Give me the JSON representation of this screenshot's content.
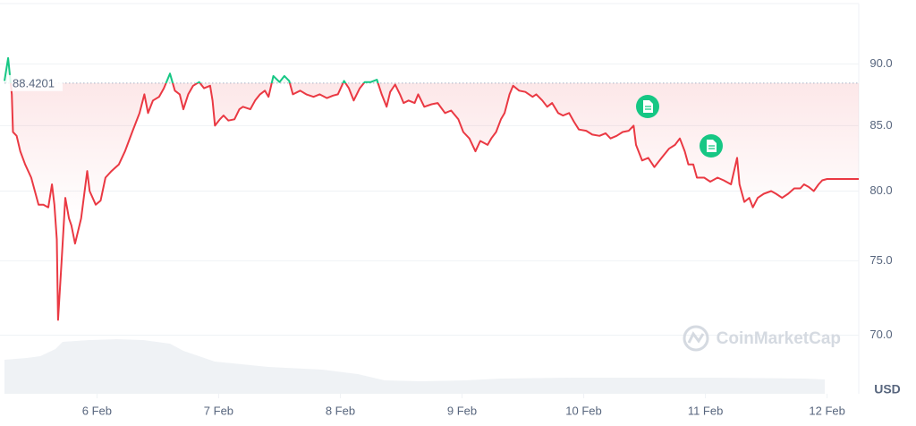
{
  "chart_data": {
    "type": "line",
    "log_scale": true,
    "grid": true,
    "baseline": 88.4201,
    "baseline_label": "88.4201",
    "y_label": "USD",
    "watermark": "CoinMarketCap",
    "xlim": [
      5.24,
      12.26
    ],
    "ylim": [
      66.3,
      95.1
    ],
    "xticks": [
      {
        "value": 6,
        "label": "6 Feb"
      },
      {
        "value": 7,
        "label": "7 Feb"
      },
      {
        "value": 8,
        "label": "8 Feb"
      },
      {
        "value": 9,
        "label": "9 Feb"
      },
      {
        "value": 10,
        "label": "10 Feb"
      },
      {
        "value": 11,
        "label": "11 Feb"
      },
      {
        "value": 12,
        "label": "12 Feb"
      }
    ],
    "yticks": [
      {
        "value": 70,
        "label": "70.0"
      },
      {
        "value": 75,
        "label": "75.0"
      },
      {
        "value": 80,
        "label": "80.0"
      },
      {
        "value": 85,
        "label": "85.0"
      },
      {
        "value": 90,
        "label": "90.0"
      }
    ],
    "x": [
      5.24,
      5.27,
      5.3,
      5.31,
      5.34,
      5.37,
      5.41,
      5.46,
      5.52,
      5.56,
      5.6,
      5.63,
      5.65,
      5.67,
      5.68,
      5.71,
      5.74,
      5.77,
      5.79,
      5.82,
      5.87,
      5.92,
      5.94,
      5.99,
      6.03,
      6.07,
      6.12,
      6.18,
      6.23,
      6.29,
      6.35,
      6.39,
      6.42,
      6.46,
      6.51,
      6.55,
      6.6,
      6.64,
      6.68,
      6.71,
      6.75,
      6.79,
      6.84,
      6.88,
      6.93,
      6.95,
      6.97,
      7.01,
      7.04,
      7.08,
      7.13,
      7.17,
      7.2,
      7.26,
      7.3,
      7.34,
      7.38,
      7.41,
      7.45,
      7.5,
      7.54,
      7.58,
      7.61,
      7.67,
      7.72,
      7.78,
      7.83,
      7.89,
      7.94,
      7.98,
      8.03,
      8.07,
      8.11,
      8.16,
      8.2,
      8.25,
      8.3,
      8.34,
      8.38,
      8.41,
      8.45,
      8.49,
      8.52,
      8.56,
      8.61,
      8.64,
      8.69,
      8.75,
      8.8,
      8.86,
      8.91,
      8.97,
      9.01,
      9.06,
      9.11,
      9.15,
      9.21,
      9.24,
      9.28,
      9.32,
      9.35,
      9.39,
      9.42,
      9.47,
      9.52,
      9.58,
      9.61,
      9.66,
      9.7,
      9.74,
      9.79,
      9.83,
      9.88,
      9.92,
      9.96,
      10.02,
      10.07,
      10.13,
      10.18,
      10.22,
      10.27,
      10.32,
      10.37,
      10.41,
      10.43,
      10.48,
      10.53,
      10.58,
      10.64,
      10.7,
      10.75,
      10.79,
      10.83,
      10.86,
      10.9,
      10.93,
      10.99,
      11.04,
      11.1,
      11.15,
      11.21,
      11.26,
      11.28,
      11.32,
      11.36,
      11.39,
      11.43,
      11.48,
      11.54,
      11.58,
      11.63,
      11.68,
      11.73,
      11.78,
      11.81,
      11.85,
      11.89,
      11.93,
      11.96,
      12.0,
      12.26
    ],
    "series": [
      {
        "color": "#ea3943",
        "up_color": "#16c784",
        "values": [
          88.6,
          90.5,
          87.5,
          84.5,
          84.2,
          83.0,
          82.0,
          81.0,
          79.0,
          79.0,
          78.8,
          80.5,
          79.0,
          76.5,
          71.0,
          75.0,
          79.5,
          78.0,
          77.5,
          76.2,
          78.0,
          81.5,
          80.0,
          79.0,
          79.3,
          81.0,
          81.5,
          82.0,
          83.0,
          84.5,
          86.0,
          87.5,
          86.0,
          87.0,
          87.3,
          88.0,
          89.2,
          87.8,
          87.5,
          86.3,
          87.5,
          88.2,
          88.5,
          88.0,
          88.2,
          87.0,
          85.0,
          85.5,
          85.8,
          85.4,
          85.5,
          86.3,
          86.5,
          86.3,
          87.0,
          87.5,
          87.8,
          87.3,
          89.0,
          88.5,
          89.0,
          88.6,
          87.5,
          87.8,
          87.5,
          87.3,
          87.5,
          87.2,
          87.4,
          87.5,
          88.6,
          88.0,
          87.0,
          88.0,
          88.5,
          88.5,
          88.7,
          87.5,
          86.5,
          87.7,
          88.3,
          87.5,
          86.8,
          87.0,
          86.8,
          87.5,
          86.5,
          86.7,
          86.8,
          86.0,
          86.2,
          85.5,
          84.5,
          84.0,
          83.0,
          83.8,
          83.5,
          84.0,
          84.5,
          85.5,
          86.0,
          87.5,
          88.2,
          87.8,
          87.7,
          87.3,
          87.5,
          87.0,
          86.5,
          86.8,
          86.0,
          85.8,
          86.0,
          85.3,
          84.7,
          84.6,
          84.3,
          84.2,
          84.4,
          84.0,
          84.2,
          84.5,
          84.6,
          85.0,
          83.5,
          82.3,
          82.5,
          81.8,
          82.5,
          83.2,
          83.5,
          84.0,
          83.0,
          82.0,
          82.0,
          81.0,
          81.0,
          80.7,
          81.0,
          80.8,
          80.5,
          82.5,
          80.5,
          79.2,
          79.5,
          78.8,
          79.5,
          79.8,
          80.0,
          79.8,
          79.5,
          79.8,
          80.2,
          80.2,
          80.5,
          80.3,
          80.0,
          80.5,
          80.8,
          80.9,
          80.9
        ]
      }
    ]
  }
}
